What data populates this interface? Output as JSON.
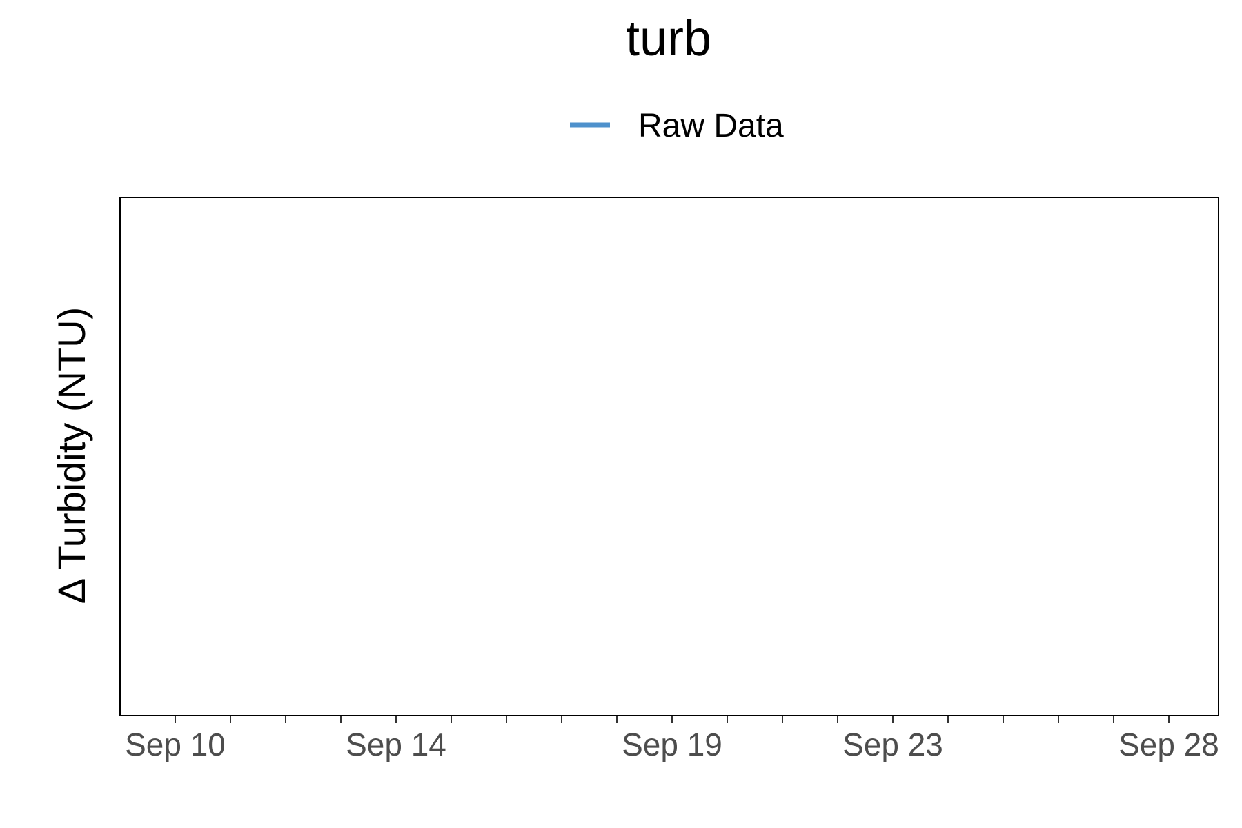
{
  "chart_data": {
    "type": "line",
    "title": "turb",
    "xlabel": "",
    "ylabel": "Δ Turbidity (NTU)",
    "x_type": "date",
    "xlim": [
      "2023-09-09",
      "2023-09-28"
    ],
    "x_ticks": [
      {
        "date": "2023-09-10",
        "label": "Sep 10"
      },
      {
        "date": "2023-09-14",
        "label": "Sep 14"
      },
      {
        "date": "2023-09-19",
        "label": "Sep 19"
      },
      {
        "date": "2023-09-23",
        "label": "Sep 23"
      },
      {
        "date": "2023-09-28",
        "label": "Sep 28"
      }
    ],
    "x_minor_ticks": [
      "2023-09-11",
      "2023-09-12",
      "2023-09-13",
      "2023-09-15",
      "2023-09-16",
      "2023-09-17",
      "2023-09-18",
      "2023-09-20",
      "2023-09-21",
      "2023-09-22",
      "2023-09-24",
      "2023-09-25",
      "2023-09-26",
      "2023-09-27"
    ],
    "series": [
      {
        "name": "Raw Data",
        "color": "#4e91cc",
        "x": [],
        "y": []
      }
    ],
    "legend": {
      "position": "top",
      "entries": [
        "Raw Data"
      ]
    },
    "grid": false
  }
}
